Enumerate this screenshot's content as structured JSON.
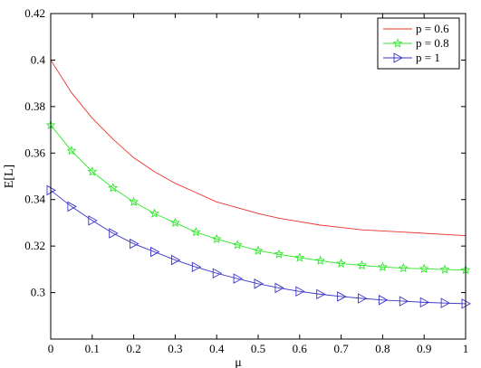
{
  "chart_data": {
    "type": "line",
    "xlabel": "μ",
    "ylabel": "E[L]",
    "xlim": [
      0,
      1
    ],
    "ylim": [
      0.28,
      0.42
    ],
    "xticks": [
      "0",
      "0.1",
      "0.2",
      "0.3",
      "0.4",
      "0.5",
      "0.6",
      "0.7",
      "0.8",
      "0.9",
      "1"
    ],
    "yticks": [
      "0.3",
      "0.32",
      "0.34",
      "0.36",
      "0.38",
      "0.4",
      "0.42"
    ],
    "grid": false,
    "legend_position": "top-right",
    "series": [
      {
        "name": "p = 0.6",
        "color": "#e8322a",
        "marker": "none",
        "x": [
          0,
          0.05,
          0.1,
          0.15,
          0.2,
          0.25,
          0.3,
          0.35,
          0.4,
          0.45,
          0.5,
          0.55,
          0.6,
          0.65,
          0.7,
          0.75,
          0.8,
          0.85,
          0.9,
          0.95,
          1
        ],
        "y": [
          0.4,
          0.386,
          0.375,
          0.366,
          0.358,
          0.352,
          0.347,
          0.343,
          0.339,
          0.3365,
          0.334,
          0.332,
          0.3305,
          0.329,
          0.328,
          0.327,
          0.3265,
          0.326,
          0.3255,
          0.325,
          0.3245
        ]
      },
      {
        "name": "p = 0.8",
        "color": "#2ee82a",
        "marker": "star",
        "x": [
          0,
          0.05,
          0.1,
          0.15,
          0.2,
          0.25,
          0.3,
          0.35,
          0.4,
          0.45,
          0.5,
          0.55,
          0.6,
          0.65,
          0.7,
          0.75,
          0.8,
          0.85,
          0.9,
          0.95,
          1
        ],
        "y": [
          0.372,
          0.361,
          0.352,
          0.345,
          0.339,
          0.334,
          0.33,
          0.326,
          0.323,
          0.3205,
          0.318,
          0.3165,
          0.315,
          0.3137,
          0.3125,
          0.3117,
          0.311,
          0.3105,
          0.3102,
          0.3099,
          0.3097
        ]
      },
      {
        "name": "p = 1",
        "color": "#3a34c9",
        "marker": "triangle-right",
        "x": [
          0,
          0.05,
          0.1,
          0.15,
          0.2,
          0.25,
          0.3,
          0.35,
          0.4,
          0.45,
          0.5,
          0.55,
          0.6,
          0.65,
          0.7,
          0.75,
          0.8,
          0.85,
          0.9,
          0.95,
          1
        ],
        "y": [
          0.344,
          0.337,
          0.331,
          0.3255,
          0.321,
          0.3175,
          0.314,
          0.311,
          0.3083,
          0.306,
          0.3038,
          0.302,
          0.3005,
          0.2993,
          0.2983,
          0.2975,
          0.2968,
          0.2963,
          0.2958,
          0.2955,
          0.2952
        ]
      }
    ]
  }
}
